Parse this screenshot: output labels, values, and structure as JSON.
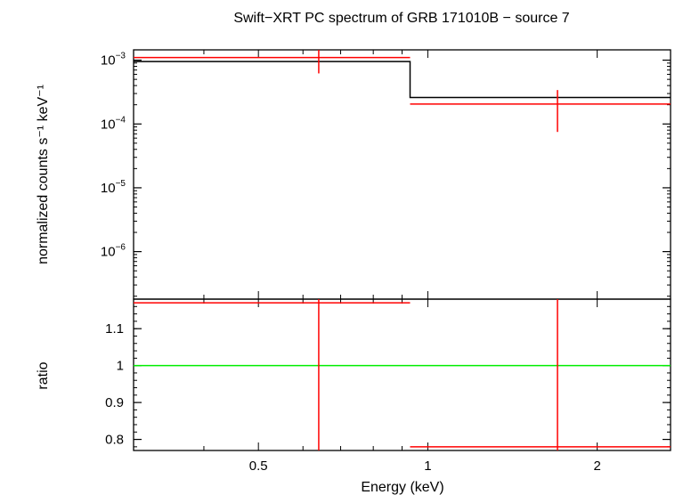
{
  "chart_data": {
    "title": "Swift−XRT PC spectrum of GRB 171010B − source 7",
    "xlabel": "Energy (keV)",
    "x_scale": "log",
    "xlim": [
      0.3,
      2.7
    ],
    "x_ticks": [
      {
        "value": 0.5,
        "label": "0.5"
      },
      {
        "value": 1,
        "label": "1"
      },
      {
        "value": 2,
        "label": "2"
      }
    ],
    "panels": [
      {
        "type": "line",
        "name": "spectrum",
        "ylabel": "normalized counts s⁻¹ keV⁻¹",
        "y_scale": "log",
        "ylim": [
          1.8e-07,
          0.00145
        ],
        "y_ticks": [
          {
            "value": 0.001,
            "base": "10",
            "exp": "−3"
          },
          {
            "value": 0.0001,
            "base": "10",
            "exp": "−4"
          },
          {
            "value": 1e-05,
            "base": "10",
            "exp": "−5"
          },
          {
            "value": 1e-06,
            "base": "10",
            "exp": "−6"
          }
        ],
        "series": [
          {
            "kind": "model-step",
            "color": "#000000",
            "steps": [
              {
                "x0": 0.3,
                "x1": 0.93,
                "y": 0.00095
              },
              {
                "x0": 0.93,
                "x1": 2.7,
                "y": 0.00026
              }
            ]
          },
          {
            "kind": "data-errorbars",
            "color": "#ff0000",
            "points": [
              {
                "x": 0.64,
                "xlo": 0.3,
                "xhi": 0.93,
                "y": 0.0011,
                "ylo": 0.00062,
                "yhi": 0.00145
              },
              {
                "x": 1.7,
                "xlo": 0.93,
                "xhi": 2.7,
                "y": 0.000205,
                "ylo": 7.5e-05,
                "yhi": 0.00034
              }
            ]
          }
        ]
      },
      {
        "type": "line",
        "name": "ratio",
        "ylabel": "ratio",
        "y_scale": "linear",
        "ylim": [
          0.77,
          1.18
        ],
        "y_ticks": [
          {
            "value": 0.8,
            "label": "0.8"
          },
          {
            "value": 0.9,
            "label": "0.9"
          },
          {
            "value": 1.0,
            "label": "1"
          },
          {
            "value": 1.1,
            "label": "1.1"
          }
        ],
        "series": [
          {
            "kind": "reference-line",
            "color": "#00ee00",
            "y": 1.0
          },
          {
            "kind": "data-errorbars",
            "color": "#ff0000",
            "points": [
              {
                "x": 0.64,
                "xlo": 0.3,
                "xhi": 0.93,
                "y": 1.17,
                "ylo": 0.77,
                "yhi": 1.18
              },
              {
                "x": 1.7,
                "xlo": 0.93,
                "xhi": 2.7,
                "y": 0.78,
                "ylo": 0.77,
                "yhi": 1.18
              }
            ]
          }
        ]
      }
    ]
  }
}
